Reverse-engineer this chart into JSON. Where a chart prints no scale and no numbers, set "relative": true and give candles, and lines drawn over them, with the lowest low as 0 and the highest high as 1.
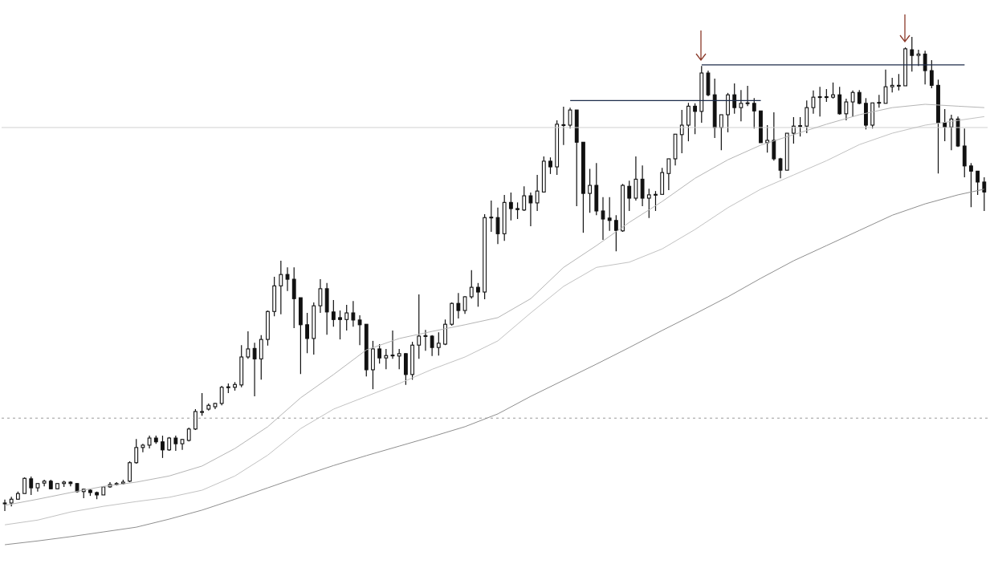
{
  "chart_data": {
    "type": "candlestick",
    "relative": true,
    "color": "#111111",
    "categories": [
      null,
      null,
      null,
      null,
      null,
      null,
      null,
      null,
      null,
      null,
      null,
      null,
      null,
      null,
      null,
      null,
      null,
      null,
      null,
      null,
      null,
      null,
      null,
      null,
      null,
      null,
      null,
      null,
      null,
      null,
      null,
      null,
      null,
      null,
      null,
      null,
      null,
      null,
      null,
      null,
      null,
      null,
      null,
      null,
      null,
      null,
      null,
      null,
      null,
      null,
      null,
      null,
      null,
      null,
      null,
      null,
      null,
      null,
      null,
      null,
      null,
      null,
      null,
      null,
      null,
      null,
      null,
      null,
      null,
      null,
      null,
      null,
      null,
      null,
      null,
      null,
      null,
      null,
      null,
      null,
      null,
      null,
      null,
      null,
      null,
      null,
      null,
      null,
      null,
      null,
      null,
      null,
      null,
      null,
      null,
      null,
      null,
      null,
      null,
      null,
      null,
      null,
      null,
      null,
      null,
      null,
      null,
      null,
      null,
      null,
      null,
      null,
      null,
      null,
      null,
      null,
      null,
      null,
      null,
      null,
      null,
      null,
      null,
      null,
      null,
      null,
      null,
      null,
      null,
      null,
      null,
      null,
      null,
      null,
      null,
      null,
      null,
      null,
      null,
      null,
      null,
      null,
      null,
      null,
      null,
      null,
      null,
      null,
      null,
      null
    ],
    "ohlc": [
      [
        0.017,
        0.024,
        0,
        0.017
      ],
      [
        0.017,
        0.03,
        0.01,
        0.025
      ],
      [
        0.025,
        0.041,
        0.024,
        0.037
      ],
      [
        0.037,
        0.071,
        0.037,
        0.069
      ],
      [
        0.068,
        0.073,
        0.034,
        0.049
      ],
      [
        0.049,
        0.059,
        0.041,
        0.058
      ],
      [
        0.059,
        0.066,
        0.052,
        0.063
      ],
      [
        0.063,
        0.066,
        0.046,
        0.047
      ],
      [
        0.047,
        0.059,
        0.046,
        0.058
      ],
      [
        0.058,
        0.064,
        0.051,
        0.061
      ],
      [
        0.061,
        0.063,
        0.052,
        0.058
      ],
      [
        0.058,
        0.059,
        0.039,
        0.041
      ],
      [
        0.041,
        0.047,
        0.027,
        0.046
      ],
      [
        0.044,
        0.046,
        0.032,
        0.039
      ],
      [
        0.039,
        0.041,
        0.025,
        0.034
      ],
      [
        0.034,
        0.052,
        0.034,
        0.051
      ],
      [
        0.051,
        0.061,
        0.049,
        0.056
      ],
      [
        0.056,
        0.061,
        0.054,
        0.058
      ],
      [
        0.058,
        0.066,
        0.056,
        0.061
      ],
      [
        0.063,
        0.105,
        0.061,
        0.102
      ],
      [
        0.102,
        0.152,
        0.1,
        0.134
      ],
      [
        0.134,
        0.142,
        0.124,
        0.139
      ],
      [
        0.139,
        0.159,
        0.132,
        0.154
      ],
      [
        0.154,
        0.159,
        0.142,
        0.146
      ],
      [
        0.146,
        0.159,
        0.112,
        0.129
      ],
      [
        0.129,
        0.156,
        0.127,
        0.154
      ],
      [
        0.154,
        0.159,
        0.127,
        0.142
      ],
      [
        0.142,
        0.152,
        0.129,
        0.151
      ],
      [
        0.149,
        0.176,
        0.147,
        0.173
      ],
      [
        0.173,
        0.215,
        0.171,
        0.21
      ],
      [
        0.208,
        0.249,
        0.201,
        0.21
      ],
      [
        0.215,
        0.227,
        0.212,
        0.223
      ],
      [
        0.22,
        0.228,
        0.215,
        0.227
      ],
      [
        0.227,
        0.264,
        0.223,
        0.261
      ],
      [
        0.261,
        0.269,
        0.249,
        0.262
      ],
      [
        0.261,
        0.272,
        0.254,
        0.267
      ],
      [
        0.266,
        0.35,
        0.261,
        0.325
      ],
      [
        0.325,
        0.379,
        0.321,
        0.342
      ],
      [
        0.343,
        0.355,
        0.242,
        0.321
      ],
      [
        0.321,
        0.371,
        0.277,
        0.362
      ],
      [
        0.362,
        0.423,
        0.349,
        0.421
      ],
      [
        0.421,
        0.494,
        0.411,
        0.475
      ],
      [
        0.475,
        0.528,
        0.415,
        0.499
      ],
      [
        0.499,
        0.514,
        0.464,
        0.489
      ],
      [
        0.489,
        0.514,
        0.386,
        0.448
      ],
      [
        0.45,
        0.45,
        0.289,
        0.393
      ],
      [
        0.393,
        0.418,
        0.333,
        0.364
      ],
      [
        0.364,
        0.44,
        0.33,
        0.433
      ],
      [
        0.433,
        0.489,
        0.418,
        0.469
      ],
      [
        0.469,
        0.481,
        0.372,
        0.42
      ],
      [
        0.42,
        0.445,
        0.389,
        0.404
      ],
      [
        0.408,
        0.423,
        0.362,
        0.404
      ],
      [
        0.404,
        0.435,
        0.381,
        0.418
      ],
      [
        0.418,
        0.443,
        0.389,
        0.403
      ],
      [
        0.403,
        0.413,
        0.35,
        0.393
      ],
      [
        0.394,
        0.394,
        0.284,
        0.298
      ],
      [
        0.298,
        0.359,
        0.257,
        0.342
      ],
      [
        0.342,
        0.352,
        0.311,
        0.323
      ],
      [
        0.323,
        0.342,
        0.299,
        0.328
      ],
      [
        0.328,
        0.381,
        0.321,
        0.329
      ],
      [
        0.327,
        0.342,
        0.299,
        0.332
      ],
      [
        0.332,
        0.333,
        0.266,
        0.288
      ],
      [
        0.288,
        0.357,
        0.277,
        0.35
      ],
      [
        0.35,
        0.457,
        0.321,
        0.369
      ],
      [
        0.369,
        0.382,
        0.338,
        0.37
      ],
      [
        0.369,
        0.371,
        0.327,
        0.345
      ],
      [
        0.345,
        0.377,
        0.328,
        0.354
      ],
      [
        0.352,
        0.404,
        0.35,
        0.394
      ],
      [
        0.394,
        0.44,
        0.391,
        0.438
      ],
      [
        0.438,
        0.46,
        0.406,
        0.423
      ],
      [
        0.423,
        0.453,
        0.416,
        0.452
      ],
      [
        0.452,
        0.508,
        0.448,
        0.472
      ],
      [
        0.472,
        0.481,
        0.431,
        0.462
      ],
      [
        0.462,
        0.626,
        0.447,
        0.619
      ],
      [
        0.619,
        0.655,
        0.589,
        0.62
      ],
      [
        0.619,
        0.64,
        0.563,
        0.585
      ],
      [
        0.585,
        0.667,
        0.57,
        0.651
      ],
      [
        0.651,
        0.672,
        0.613,
        0.638
      ],
      [
        0.638,
        0.651,
        0.616,
        0.636
      ],
      [
        0.635,
        0.685,
        0.633,
        0.665
      ],
      [
        0.665,
        0.672,
        0.601,
        0.65
      ],
      [
        0.65,
        0.709,
        0.633,
        0.675
      ],
      [
        0.673,
        0.748,
        0.672,
        0.738
      ],
      [
        0.738,
        0.746,
        0.711,
        0.726
      ],
      [
        0.726,
        0.824,
        0.709,
        0.816
      ],
      [
        0.814,
        0.853,
        0.772,
        0.815
      ],
      [
        0.814,
        0.851,
        0.807,
        0.846
      ],
      [
        0.846,
        0.846,
        0.643,
        0.778
      ],
      [
        0.778,
        0.778,
        0.587,
        0.67
      ],
      [
        0.67,
        0.722,
        0.629,
        0.687
      ],
      [
        0.687,
        0.734,
        0.624,
        0.633
      ],
      [
        0.633,
        0.662,
        0.572,
        0.616
      ],
      [
        0.618,
        0.662,
        0.591,
        0.613
      ],
      [
        0.613,
        0.624,
        0.548,
        0.592
      ],
      [
        0.591,
        0.69,
        0.589,
        0.687
      ],
      [
        0.685,
        0.697,
        0.633,
        0.66
      ],
      [
        0.66,
        0.748,
        0.655,
        0.7
      ],
      [
        0.7,
        0.729,
        0.643,
        0.66
      ],
      [
        0.66,
        0.68,
        0.618,
        0.667
      ],
      [
        0.667,
        0.675,
        0.633,
        0.668
      ],
      [
        0.668,
        0.724,
        0.668,
        0.714
      ],
      [
        0.712,
        0.743,
        0.677,
        0.743
      ],
      [
        0.743,
        0.795,
        0.729,
        0.795
      ],
      [
        0.794,
        0.846,
        0.755,
        0.814
      ],
      [
        0.814,
        0.861,
        0.78,
        0.854
      ],
      [
        0.854,
        0.86,
        0.795,
        0.843
      ],
      [
        0.843,
        0.939,
        0.819,
        0.924
      ],
      [
        0.924,
        0.929,
        0.875,
        0.878
      ],
      [
        0.878,
        0.912,
        0.787,
        0.809
      ],
      [
        0.809,
        0.836,
        0.761,
        0.836
      ],
      [
        0.836,
        0.882,
        0.799,
        0.878
      ],
      [
        0.878,
        0.902,
        0.838,
        0.851
      ],
      [
        0.851,
        0.888,
        0.822,
        0.86
      ],
      [
        0.86,
        0.897,
        0.854,
        0.861
      ],
      [
        0.86,
        0.871,
        0.807,
        0.844
      ],
      [
        0.844,
        0.844,
        0.777,
        0.777
      ],
      [
        0.777,
        0.814,
        0.756,
        0.782
      ],
      [
        0.782,
        0.841,
        0.739,
        0.743
      ],
      [
        0.743,
        0.745,
        0.702,
        0.719
      ],
      [
        0.719,
        0.797,
        0.719,
        0.797
      ],
      [
        0.797,
        0.831,
        0.775,
        0.812
      ],
      [
        0.812,
        0.831,
        0.79,
        0.813
      ],
      [
        0.812,
        0.866,
        0.797,
        0.851
      ],
      [
        0.851,
        0.887,
        0.838,
        0.873
      ],
      [
        0.873,
        0.895,
        0.832,
        0.874
      ],
      [
        0.873,
        0.89,
        0.863,
        0.874
      ],
      [
        0.873,
        0.904,
        0.87,
        0.878
      ],
      [
        0.878,
        0.895,
        0.836,
        0.838
      ],
      [
        0.838,
        0.87,
        0.824,
        0.863
      ],
      [
        0.863,
        0.887,
        0.832,
        0.883
      ],
      [
        0.883,
        0.888,
        0.858,
        0.86
      ],
      [
        0.86,
        0.871,
        0.805,
        0.814
      ],
      [
        0.814,
        0.861,
        0.807,
        0.861
      ],
      [
        0.861,
        0.878,
        0.851,
        0.862
      ],
      [
        0.86,
        0.931,
        0.86,
        0.895
      ],
      [
        0.895,
        0.914,
        0.883,
        0.898
      ],
      [
        0.897,
        0.922,
        0.887,
        0.898
      ],
      [
        0.897,
        0.978,
        0.897,
        0.975
      ],
      [
        0.973,
        1,
        0.927,
        0.961
      ],
      [
        0.961,
        0.973,
        0.939,
        0.964
      ],
      [
        0.964,
        0.971,
        0.9,
        0.929
      ],
      [
        0.929,
        0.951,
        0.892,
        0.898
      ],
      [
        0.898,
        0.91,
        0.712,
        0.819
      ],
      [
        0.819,
        0.848,
        0.78,
        0.81
      ],
      [
        0.81,
        0.836,
        0.761,
        0.827
      ],
      [
        0.827,
        0.832,
        0.768,
        0.77
      ],
      [
        0.77,
        0.807,
        0.704,
        0.728
      ],
      [
        0.728,
        0.734,
        0.641,
        0.717
      ],
      [
        0.717,
        0.717,
        0.667,
        0.694
      ],
      [
        0.694,
        0.704,
        0.633,
        0.673
      ]
    ],
    "series": [
      {
        "type": "line",
        "color": "#b5b5b5",
        "values": [
          0.012,
          null,
          null,
          null,
          null,
          0.025,
          null,
          null,
          null,
          null,
          0.039,
          null,
          null,
          null,
          null,
          0.052,
          null,
          null,
          null,
          null,
          0.061,
          null,
          null,
          null,
          null,
          0.074,
          null,
          null,
          null,
          null,
          0.095,
          null,
          null,
          null,
          null,
          0.132,
          null,
          null,
          null,
          null,
          0.178,
          null,
          null,
          null,
          null,
          0.239,
          null,
          null,
          null,
          null,
          0.288,
          null,
          null,
          null,
          null,
          0.34,
          null,
          null,
          null,
          null,
          0.364,
          null,
          null,
          null,
          null,
          0.379,
          null,
          null,
          null,
          null,
          0.393,
          null,
          null,
          null,
          null,
          0.408,
          null,
          null,
          null,
          null,
          0.448,
          null,
          null,
          null,
          null,
          0.514,
          null,
          null,
          null,
          null,
          0.56,
          null,
          null,
          null,
          null,
          0.609,
          null,
          null,
          null,
          null,
          0.653,
          null,
          null,
          null,
          null,
          0.702,
          null,
          null,
          null,
          null,
          0.741,
          null,
          null,
          null,
          null,
          0.772,
          null,
          null,
          null,
          null,
          0.794,
          null,
          null,
          null,
          null,
          0.816,
          null,
          null,
          null,
          null,
          0.836,
          null,
          null,
          null,
          null,
          0.851,
          null,
          null,
          null,
          null,
          0.858,
          null,
          null,
          null,
          null,
          0.854,
          null,
          null,
          null,
          0.851
        ]
      },
      {
        "type": "line",
        "color": "#c2c2c2",
        "values": [
          -0.029,
          null,
          null,
          null,
          null,
          -0.019,
          null,
          null,
          null,
          null,
          -0.002,
          null,
          null,
          null,
          null,
          0.01,
          null,
          null,
          null,
          null,
          0.02,
          null,
          null,
          null,
          null,
          0.029,
          null,
          null,
          null,
          null,
          0.044,
          null,
          null,
          null,
          null,
          0.074,
          null,
          null,
          null,
          null,
          0.118,
          null,
          null,
          null,
          null,
          0.174,
          null,
          null,
          null,
          null,
          0.215,
          null,
          null,
          null,
          null,
          0.242,
          null,
          null,
          null,
          null,
          0.269,
          null,
          null,
          null,
          null,
          0.299,
          null,
          null,
          null,
          null,
          0.325,
          null,
          null,
          null,
          null,
          0.359,
          null,
          null,
          null,
          null,
          0.418,
          null,
          null,
          null,
          null,
          0.474,
          null,
          null,
          null,
          null,
          0.514,
          null,
          null,
          null,
          null,
          0.525,
          null,
          null,
          null,
          null,
          0.553,
          null,
          null,
          null,
          null,
          0.594,
          null,
          null,
          null,
          null,
          0.64,
          null,
          null,
          null,
          null,
          0.679,
          null,
          null,
          null,
          null,
          0.709,
          null,
          null,
          null,
          null,
          0.739,
          null,
          null,
          null,
          null,
          0.773,
          null,
          null,
          null,
          null,
          0.797,
          null,
          null,
          null,
          null,
          0.814,
          null,
          null,
          null,
          null,
          0.824,
          null,
          null,
          null,
          0.832
        ]
      },
      {
        "type": "line",
        "color": "#8f8f8f",
        "values": [
          -0.071,
          null,
          null,
          null,
          null,
          -0.063,
          null,
          null,
          null,
          null,
          -0.054,
          null,
          null,
          null,
          null,
          -0.044,
          null,
          null,
          null,
          null,
          -0.034,
          null,
          null,
          null,
          null,
          -0.017,
          null,
          null,
          null,
          null,
          0.002,
          null,
          null,
          null,
          null,
          0.025,
          null,
          null,
          null,
          null,
          0.049,
          null,
          null,
          null,
          null,
          0.073,
          null,
          null,
          null,
          null,
          0.096,
          null,
          null,
          null,
          null,
          0.117,
          null,
          null,
          null,
          null,
          0.137,
          null,
          null,
          null,
          null,
          0.157,
          null,
          null,
          null,
          null,
          0.178,
          null,
          null,
          null,
          null,
          0.205,
          null,
          null,
          null,
          null,
          0.242,
          null,
          null,
          null,
          null,
          0.276,
          null,
          null,
          null,
          null,
          0.31,
          null,
          null,
          null,
          null,
          0.345,
          null,
          null,
          null,
          null,
          0.381,
          null,
          null,
          null,
          null,
          0.416,
          null,
          null,
          null,
          null,
          0.452,
          null,
          null,
          null,
          null,
          0.491,
          null,
          null,
          null,
          null,
          0.528,
          null,
          null,
          null,
          null,
          0.56,
          null,
          null,
          null,
          null,
          0.592,
          null,
          null,
          null,
          null,
          0.624,
          null,
          null,
          null,
          null,
          0.648,
          null,
          null,
          null,
          null,
          0.667,
          null,
          null,
          null,
          0.679
        ]
      },
      {
        "type": "line",
        "color": "#1c2b4a",
        "values": [
          null,
          null,
          null,
          null,
          null,
          null,
          null,
          null,
          null,
          null,
          null,
          null,
          null,
          null,
          null,
          null,
          null,
          null,
          null,
          null,
          null,
          null,
          null,
          null,
          null,
          null,
          null,
          null,
          null,
          null,
          null,
          null,
          null,
          null,
          null,
          null,
          null,
          null,
          null,
          null,
          null,
          null,
          null,
          null,
          null,
          null,
          null,
          null,
          null,
          null,
          null,
          null,
          null,
          null,
          null,
          null,
          null,
          null,
          null,
          null,
          null,
          null,
          null,
          null,
          null,
          null,
          null,
          null,
          null,
          null,
          null,
          null,
          null,
          null,
          null,
          null,
          null,
          null,
          null,
          null,
          null,
          null,
          null,
          null,
          null,
          null,
          0.866,
          0.866,
          0.866,
          0.866,
          0.866,
          0.866,
          0.866,
          0.866,
          0.866,
          0.866,
          0.866,
          0.866,
          0.866,
          0.866,
          0.866,
          0.866,
          0.866,
          0.866,
          0.866,
          0.866,
          0.866,
          0.866,
          0.866,
          0.866,
          0.866,
          0.866,
          0.866,
          0.866,
          0.866,
          0.866,
          null,
          null,
          null,
          null,
          null,
          null,
          null,
          null,
          null,
          null,
          null,
          null,
          null,
          null,
          null,
          null,
          null,
          null,
          null,
          null,
          null,
          null,
          null,
          null,
          null,
          null,
          null,
          null,
          null,
          null,
          null,
          null,
          null,
          null
        ]
      },
      {
        "type": "line",
        "color": "#1c2b4a",
        "values": [
          null,
          null,
          null,
          null,
          null,
          null,
          null,
          null,
          null,
          null,
          null,
          null,
          null,
          null,
          null,
          null,
          null,
          null,
          null,
          null,
          null,
          null,
          null,
          null,
          null,
          null,
          null,
          null,
          null,
          null,
          null,
          null,
          null,
          null,
          null,
          null,
          null,
          null,
          null,
          null,
          null,
          null,
          null,
          null,
          null,
          null,
          null,
          null,
          null,
          null,
          null,
          null,
          null,
          null,
          null,
          null,
          null,
          null,
          null,
          null,
          null,
          null,
          null,
          null,
          null,
          null,
          null,
          null,
          null,
          null,
          null,
          null,
          null,
          null,
          null,
          null,
          null,
          null,
          null,
          null,
          null,
          null,
          null,
          null,
          null,
          null,
          null,
          null,
          null,
          null,
          null,
          null,
          null,
          null,
          null,
          null,
          null,
          null,
          null,
          null,
          null,
          null,
          null,
          null,
          null,
          null,
          0.941,
          0.941,
          0.941,
          0.941,
          0.941,
          0.941,
          0.941,
          0.941,
          0.941,
          0.941,
          0.941,
          0.941,
          0.941,
          0.941,
          0.941,
          0.941,
          0.941,
          0.941,
          0.941,
          0.941,
          0.941,
          0.941,
          0.941,
          0.941,
          0.941,
          0.941,
          0.941,
          0.941,
          0.941,
          0.941,
          0.941,
          0.941,
          0.941,
          0.941,
          0.941,
          0.941,
          0.941,
          0.941,
          0.941,
          0.941,
          0.941,
          null,
          null,
          null
        ]
      }
    ],
    "ref_lines": [
      {
        "axis": "y",
        "value": 0.809,
        "color": "#d0d0d0",
        "line_style": "solid"
      },
      {
        "axis": "y",
        "value": 0.196,
        "color": "#9a9a9a",
        "line_style": "dashed"
      }
    ]
  }
}
